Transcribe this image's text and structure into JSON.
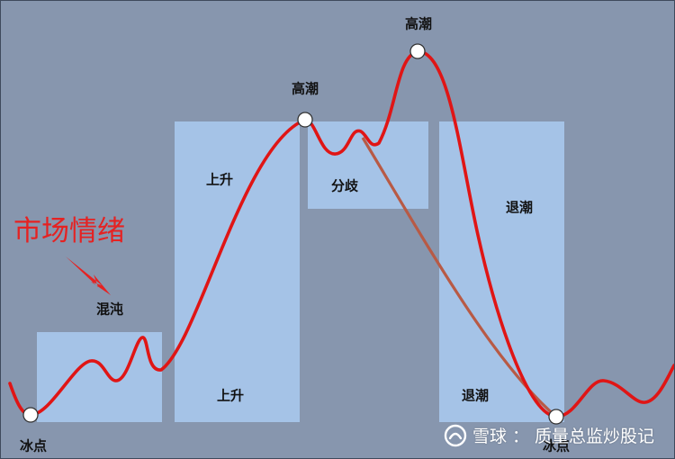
{
  "title": "市场情绪",
  "stages": {
    "chaos": "混沌",
    "rise_top": "上升",
    "rise_bottom": "上升",
    "divergence": "分歧",
    "ebb_top": "退潮",
    "ebb_bottom": "退潮",
    "climax_1": "高潮",
    "climax_2": "高潮",
    "freeze_left": "冰点",
    "freeze_right": "冰点"
  },
  "watermark": {
    "brand": "雪球",
    "separator": "：",
    "author": "质量总监炒股记"
  },
  "colors": {
    "background": "#8796ae",
    "panel": "#a5c3e7",
    "curve": "#e01515",
    "decline_curve": "#b85a45",
    "title": "#e52222",
    "node_fill": "#ffffff",
    "node_stroke": "#333333"
  }
}
